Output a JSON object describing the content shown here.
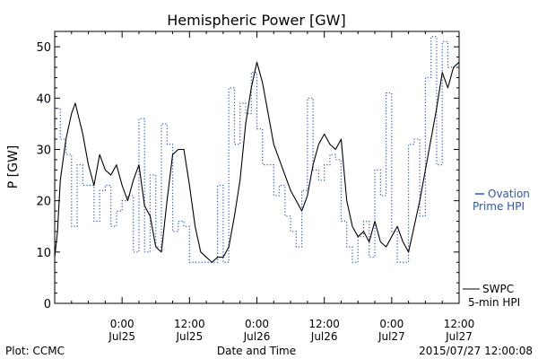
{
  "chart_data": {
    "type": "line",
    "title": "Hemispheric Power [GW]",
    "ylabel": "P [GW]",
    "xlabel": "Date and Time",
    "ylim": [
      0,
      53
    ],
    "yticks": [
      0,
      10,
      20,
      30,
      40,
      50
    ],
    "xlim": [
      "2015-07-24T12:00",
      "2015-07-27T12:00"
    ],
    "xticks": [
      {
        "time": "2015-07-25T00:00",
        "line1": "0:00",
        "line2": "Jul25"
      },
      {
        "time": "2015-07-25T12:00",
        "line1": "12:00",
        "line2": "Jul25"
      },
      {
        "time": "2015-07-26T00:00",
        "line1": "0:00",
        "line2": "Jul26"
      },
      {
        "time": "2015-07-26T12:00",
        "line1": "12:00",
        "line2": "Jul26"
      },
      {
        "time": "2015-07-27T00:00",
        "line1": "0:00",
        "line2": "Jul27"
      },
      {
        "time": "2015-07-27T12:00",
        "line1": "12:00",
        "line2": "Jul27"
      }
    ],
    "grid": false,
    "legend_placement": "right",
    "series": [
      {
        "name_lines": [
          "Ovation",
          "Prime HPI"
        ],
        "style": "dotted-step",
        "color": "#2a55c8",
        "points": [
          [
            "2015-07-24T12:00",
            38
          ],
          [
            "2015-07-24T13:00",
            32
          ],
          [
            "2015-07-24T14:00",
            29
          ],
          [
            "2015-07-24T15:00",
            15
          ],
          [
            "2015-07-24T16:00",
            27
          ],
          [
            "2015-07-24T17:00",
            23
          ],
          [
            "2015-07-24T19:00",
            16
          ],
          [
            "2015-07-24T20:00",
            22
          ],
          [
            "2015-07-24T21:00",
            23
          ],
          [
            "2015-07-24T22:00",
            15
          ],
          [
            "2015-07-24T23:00",
            18
          ],
          [
            "2015-07-25T00:00",
            20
          ],
          [
            "2015-07-25T01:00",
            21
          ],
          [
            "2015-07-25T02:00",
            10
          ],
          [
            "2015-07-25T03:00",
            36
          ],
          [
            "2015-07-25T04:00",
            10
          ],
          [
            "2015-07-25T05:00",
            25
          ],
          [
            "2015-07-25T06:00",
            11
          ],
          [
            "2015-07-25T07:00",
            35
          ],
          [
            "2015-07-25T08:00",
            31
          ],
          [
            "2015-07-25T09:00",
            14
          ],
          [
            "2015-07-25T10:00",
            16
          ],
          [
            "2015-07-25T11:00",
            15
          ],
          [
            "2015-07-25T12:00",
            8
          ],
          [
            "2015-07-25T17:00",
            23
          ],
          [
            "2015-07-25T18:00",
            8
          ],
          [
            "2015-07-25T19:00",
            42
          ],
          [
            "2015-07-25T20:00",
            31
          ],
          [
            "2015-07-25T21:00",
            39
          ],
          [
            "2015-07-25T22:00",
            37
          ],
          [
            "2015-07-25T23:00",
            45
          ],
          [
            "2015-07-26T00:00",
            34
          ],
          [
            "2015-07-26T01:00",
            27
          ],
          [
            "2015-07-26T03:00",
            21
          ],
          [
            "2015-07-26T04:00",
            23
          ],
          [
            "2015-07-26T05:00",
            17
          ],
          [
            "2015-07-26T06:00",
            14
          ],
          [
            "2015-07-26T07:00",
            11
          ],
          [
            "2015-07-26T08:00",
            22
          ],
          [
            "2015-07-26T09:00",
            40
          ],
          [
            "2015-07-26T10:00",
            26
          ],
          [
            "2015-07-26T11:00",
            24
          ],
          [
            "2015-07-26T12:00",
            27
          ],
          [
            "2015-07-26T13:00",
            29
          ],
          [
            "2015-07-26T14:00",
            28
          ],
          [
            "2015-07-26T15:00",
            16
          ],
          [
            "2015-07-26T16:00",
            11
          ],
          [
            "2015-07-26T17:00",
            8
          ],
          [
            "2015-07-26T18:00",
            13
          ],
          [
            "2015-07-26T19:00",
            16
          ],
          [
            "2015-07-26T20:00",
            9
          ],
          [
            "2015-07-26T21:00",
            26
          ],
          [
            "2015-07-26T22:00",
            21
          ],
          [
            "2015-07-26T23:00",
            41
          ],
          [
            "2015-07-27T00:00",
            14
          ],
          [
            "2015-07-27T01:00",
            8
          ],
          [
            "2015-07-27T03:00",
            31
          ],
          [
            "2015-07-27T04:00",
            32
          ],
          [
            "2015-07-27T05:00",
            17
          ],
          [
            "2015-07-27T06:00",
            44
          ],
          [
            "2015-07-27T07:00",
            52
          ],
          [
            "2015-07-27T08:00",
            27
          ],
          [
            "2015-07-27T09:00",
            51
          ],
          [
            "2015-07-27T10:00",
            46
          ],
          [
            "2015-07-27T12:00",
            46
          ]
        ]
      },
      {
        "name_lines": [
          "SWPC",
          "5-min HPI"
        ],
        "style": "solid",
        "color": "#000000",
        "points": [
          [
            "2015-07-24T12:00",
            9
          ],
          [
            "2015-07-24T12:30",
            14
          ],
          [
            "2015-07-24T13:00",
            24
          ],
          [
            "2015-07-24T14:00",
            32
          ],
          [
            "2015-07-24T15:00",
            37
          ],
          [
            "2015-07-24T15:40",
            39
          ],
          [
            "2015-07-24T17:00",
            33
          ],
          [
            "2015-07-24T18:00",
            27
          ],
          [
            "2015-07-24T19:00",
            23
          ],
          [
            "2015-07-24T20:00",
            29
          ],
          [
            "2015-07-24T21:00",
            26
          ],
          [
            "2015-07-24T22:00",
            25
          ],
          [
            "2015-07-24T23:00",
            27
          ],
          [
            "2015-07-25T00:00",
            23
          ],
          [
            "2015-07-25T01:00",
            20
          ],
          [
            "2015-07-25T02:00",
            24
          ],
          [
            "2015-07-25T03:00",
            27
          ],
          [
            "2015-07-25T04:00",
            19
          ],
          [
            "2015-07-25T05:00",
            17
          ],
          [
            "2015-07-25T06:00",
            11
          ],
          [
            "2015-07-25T07:00",
            10
          ],
          [
            "2015-07-25T08:00",
            20
          ],
          [
            "2015-07-25T09:00",
            29
          ],
          [
            "2015-07-25T10:00",
            30
          ],
          [
            "2015-07-25T11:00",
            30
          ],
          [
            "2015-07-25T12:00",
            23
          ],
          [
            "2015-07-25T13:00",
            15
          ],
          [
            "2015-07-25T14:00",
            10
          ],
          [
            "2015-07-25T15:00",
            9
          ],
          [
            "2015-07-25T16:00",
            8
          ],
          [
            "2015-07-25T17:00",
            9
          ],
          [
            "2015-07-25T18:00",
            9
          ],
          [
            "2015-07-25T19:00",
            11
          ],
          [
            "2015-07-25T20:00",
            17
          ],
          [
            "2015-07-25T21:00",
            24
          ],
          [
            "2015-07-25T22:00",
            35
          ],
          [
            "2015-07-25T23:00",
            42
          ],
          [
            "2015-07-26T00:00",
            47
          ],
          [
            "2015-07-26T01:00",
            43
          ],
          [
            "2015-07-26T02:00",
            37
          ],
          [
            "2015-07-26T03:00",
            31
          ],
          [
            "2015-07-26T04:00",
            28
          ],
          [
            "2015-07-26T05:00",
            25
          ],
          [
            "2015-07-26T06:00",
            22
          ],
          [
            "2015-07-26T07:00",
            20
          ],
          [
            "2015-07-26T08:00",
            18
          ],
          [
            "2015-07-26T09:00",
            21
          ],
          [
            "2015-07-26T10:00",
            27
          ],
          [
            "2015-07-26T11:00",
            31
          ],
          [
            "2015-07-26T12:00",
            33
          ],
          [
            "2015-07-26T13:00",
            31
          ],
          [
            "2015-07-26T14:00",
            30
          ],
          [
            "2015-07-26T15:00",
            32
          ],
          [
            "2015-07-26T16:00",
            20
          ],
          [
            "2015-07-26T17:00",
            15
          ],
          [
            "2015-07-26T18:00",
            13
          ],
          [
            "2015-07-26T19:00",
            14
          ],
          [
            "2015-07-26T20:00",
            12
          ],
          [
            "2015-07-26T21:00",
            16
          ],
          [
            "2015-07-26T22:00",
            12
          ],
          [
            "2015-07-26T23:00",
            11
          ],
          [
            "2015-07-27T00:00",
            13
          ],
          [
            "2015-07-27T01:00",
            15
          ],
          [
            "2015-07-27T02:00",
            12
          ],
          [
            "2015-07-27T03:00",
            10
          ],
          [
            "2015-07-27T04:00",
            15
          ],
          [
            "2015-07-27T05:00",
            20
          ],
          [
            "2015-07-27T06:00",
            26
          ],
          [
            "2015-07-27T07:00",
            32
          ],
          [
            "2015-07-27T08:00",
            38
          ],
          [
            "2015-07-27T09:00",
            45
          ],
          [
            "2015-07-27T10:00",
            42
          ],
          [
            "2015-07-27T11:00",
            46
          ],
          [
            "2015-07-27T12:00",
            47
          ]
        ]
      }
    ]
  },
  "footer": {
    "left": "Plot: CCMC",
    "right": "2015/07/27 12:00:08"
  }
}
